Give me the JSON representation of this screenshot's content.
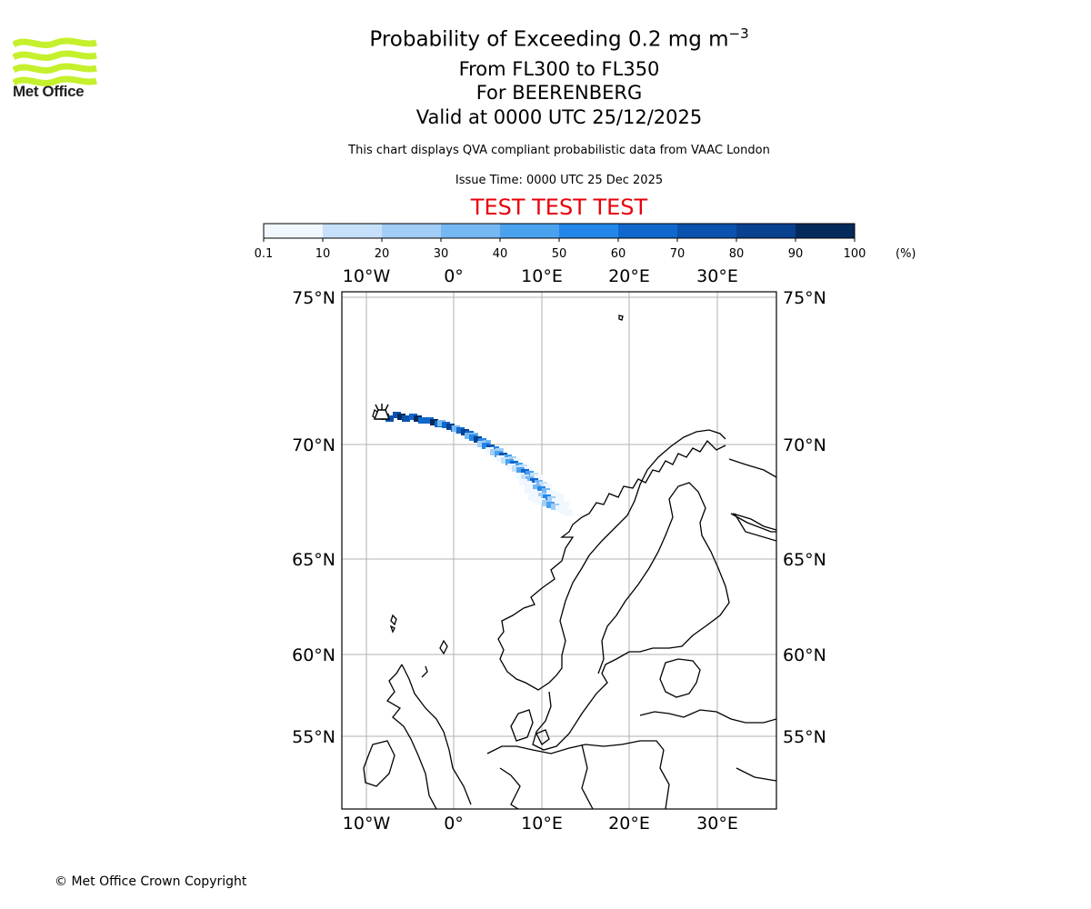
{
  "logo": {
    "name": "Met Office",
    "color": "#c5f02c"
  },
  "header": {
    "title_main": "Probability of Exceeding 0.2 mg m",
    "title_sup": "−3",
    "levels": "From FL300 to FL350",
    "volcano": "For BEERENBERG",
    "valid": "Valid at 0000 UTC 25/12/2025",
    "description": "This chart displays QVA compliant probabilistic data from VAAC London",
    "issue_time": "Issue Time: 0000 UTC 25 Dec 2025",
    "test_banner": "TEST TEST TEST",
    "test_color": "#e8000b"
  },
  "colorbar": {
    "ticks": [
      "0.1",
      "10",
      "20",
      "30",
      "40",
      "50",
      "60",
      "70",
      "80",
      "90",
      "100"
    ],
    "unit": "(%)",
    "colors": [
      "#f0f7ff",
      "#c6e0f9",
      "#a1cdf6",
      "#75b7f2",
      "#4aa2ef",
      "#2387ea",
      "#1068cc",
      "#0a52ad",
      "#07418f",
      "#042a5c"
    ]
  },
  "map": {
    "lon_labels": [
      "10°W",
      "0°",
      "10°E",
      "20°E",
      "30°E"
    ],
    "lat_labels": [
      "75°N",
      "70°N",
      "65°N",
      "60°N",
      "55°N"
    ],
    "volcano_symbol": "volcano-icon",
    "plume_probability_pct": [
      100,
      100,
      95,
      95,
      90,
      90,
      85,
      80,
      75,
      70,
      70,
      65,
      60,
      55,
      50
    ]
  },
  "footer": {
    "copyright": "© Met Office Crown Copyright"
  }
}
